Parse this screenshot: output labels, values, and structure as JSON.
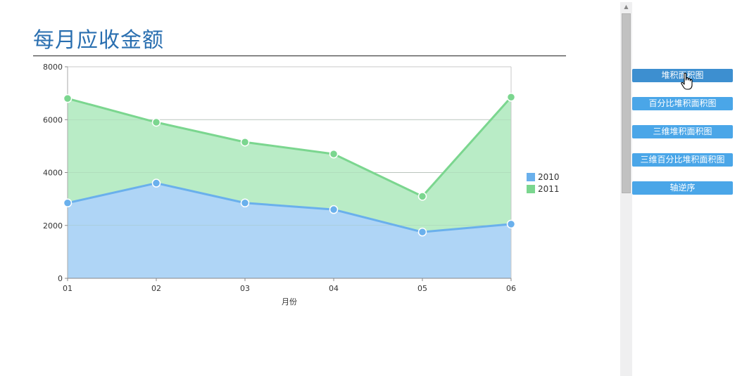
{
  "page_title": "每月应收金额",
  "buttons": [
    {
      "label": "堆积面积图",
      "active": true
    },
    {
      "label": "百分比堆积面积图",
      "active": false
    },
    {
      "label": "三维堆积面积图",
      "active": false
    },
    {
      "label": "三维百分比堆积面积图",
      "active": false
    },
    {
      "label": "轴逆序",
      "active": false
    }
  ],
  "chart_data": {
    "type": "area",
    "stacked": true,
    "categories": [
      "01",
      "02",
      "03",
      "04",
      "05",
      "06"
    ],
    "xlabel": "月份",
    "ylabel": "",
    "ylim": [
      0,
      8000
    ],
    "yticks": [
      0,
      2000,
      4000,
      6000,
      8000
    ],
    "grid": true,
    "legend_position": "right",
    "series": [
      {
        "name": "2010",
        "values": [
          2850,
          3600,
          2850,
          2600,
          1750,
          2050
        ],
        "color": "#6ab0ec",
        "fill": "#afd5f6"
      },
      {
        "name": "2011",
        "values": [
          3950,
          2300,
          2300,
          2100,
          1350,
          4800
        ],
        "color": "#7bd68f",
        "fill": "#b9ecc6"
      }
    ]
  }
}
